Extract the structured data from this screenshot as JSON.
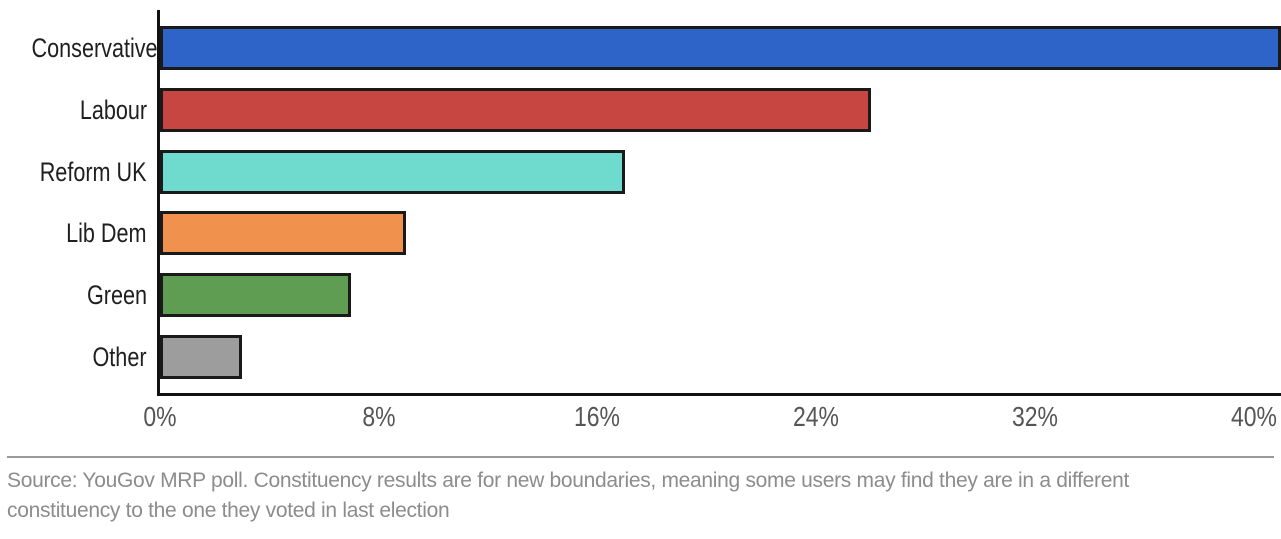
{
  "chart_data": {
    "type": "bar",
    "orientation": "horizontal",
    "title": "",
    "xlabel": "",
    "ylabel": "",
    "categories": [
      "Conservative",
      "Labour",
      "Reform UK",
      "Lib Dem",
      "Green",
      "Other"
    ],
    "values": [
      41,
      26,
      17,
      9,
      7,
      3
    ],
    "unit": "%",
    "bar_colors": [
      "#2E63C7",
      "#C74642",
      "#6FDBCE",
      "#F0914E",
      "#5F9E52",
      "#9D9D9D"
    ],
    "xlim": [
      0,
      41
    ],
    "x_ticks": {
      "values": [
        0,
        8,
        16,
        24,
        32,
        40
      ],
      "labels": [
        "0%",
        "8%",
        "16%",
        "24%",
        "32%",
        "40%"
      ]
    },
    "grid": false,
    "legend": false
  },
  "source": {
    "lines": [
      "Source: YouGov MRP poll. Constituency results are for new boundaries, meaning some users may find they are in a different",
      "constituency to the one they voted in last election"
    ]
  },
  "style": {
    "axis_color": "#111111",
    "bar_border_color": "#1A1A1A",
    "category_label_color": "#1F1F1F",
    "tick_label_color": "#555555",
    "source_text_color": "#8C8C8C",
    "divider_color": "#999999",
    "background_color": "#FFFFFF"
  }
}
